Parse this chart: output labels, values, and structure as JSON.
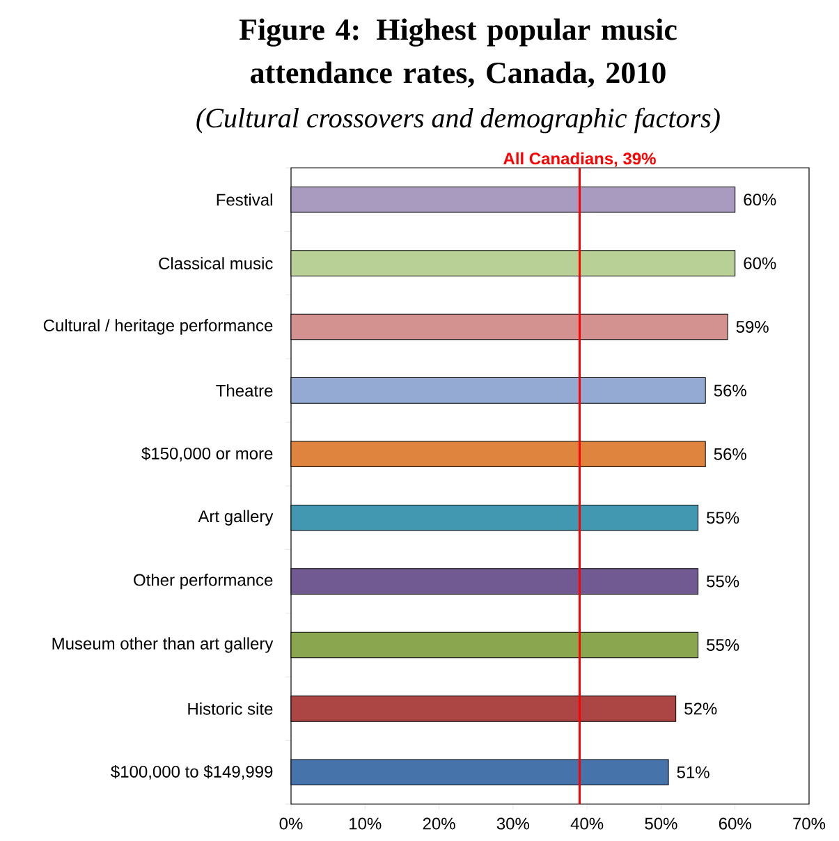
{
  "chart_data": {
    "type": "bar",
    "orientation": "horizontal",
    "title": "Figure 4: Highest popular music attendance rates, Canada, 2010",
    "subtitle": "(Cultural crossovers and demographic factors)",
    "categories": [
      "Festival",
      "Classical music",
      "Cultural / heritage performance",
      "Theatre",
      "$150,000 or more",
      "Art gallery",
      "Other performance",
      "Museum other than art gallery",
      "Historic site",
      "$100,000 to $149,999"
    ],
    "values": [
      60,
      60,
      59,
      56,
      56,
      55,
      55,
      55,
      52,
      51
    ],
    "value_labels": [
      "60%",
      "60%",
      "59%",
      "56%",
      "56%",
      "55%",
      "55%",
      "55%",
      "52%",
      "51%"
    ],
    "colors": [
      "#a99bbf",
      "#b8cf96",
      "#d39190",
      "#95aad3",
      "#df843f",
      "#4298b0",
      "#715a91",
      "#8aa74f",
      "#ac4645",
      "#4673aa"
    ],
    "xlim": [
      0,
      70
    ],
    "xticks": [
      {
        "value": 0,
        "label": "0%"
      },
      {
        "value": 10,
        "label": "10%"
      },
      {
        "value": 20,
        "label": "20%"
      },
      {
        "value": 30,
        "label": "30%"
      },
      {
        "value": 40,
        "label": "40%"
      },
      {
        "value": 50,
        "label": "50%"
      },
      {
        "value": 60,
        "label": "60%"
      },
      {
        "value": 70,
        "label": "70%"
      }
    ],
    "ref_lines": [
      {
        "axis": "x",
        "value": 39,
        "label": "All Canadians, 39%",
        "color": "#ff0000"
      }
    ]
  }
}
